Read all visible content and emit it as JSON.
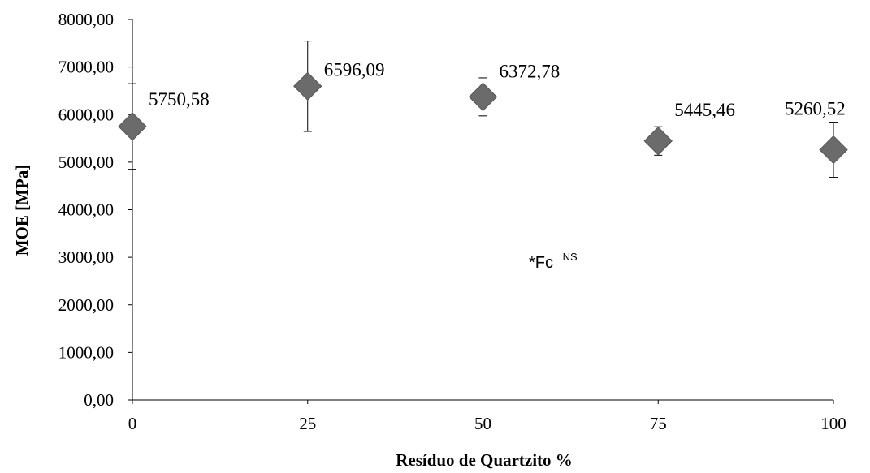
{
  "chart_data": {
    "type": "scatter",
    "x": [
      0,
      25,
      50,
      75,
      100
    ],
    "y": [
      5750.58,
      6596.09,
      6372.78,
      5445.46,
      5260.52
    ],
    "error": [
      900,
      950,
      400,
      300,
      580
    ],
    "data_labels": [
      "5750,58",
      "6596,09",
      "6372,78",
      "5445,46",
      "5260,52"
    ],
    "x_ticks": [
      "0",
      "25",
      "50",
      "75",
      "100"
    ],
    "y_ticks": [
      "0,00",
      "1000,00",
      "2000,00",
      "3000,00",
      "4000,00",
      "5000,00",
      "6000,00",
      "7000,00",
      "8000,00"
    ],
    "xlabel": "Resíduo de Quartzito %",
    "ylabel": "MOE [MPa]",
    "xlim": [
      0,
      100
    ],
    "ylim": [
      0,
      8000
    ],
    "annotation": {
      "text": "*Fc",
      "superscript": "NS"
    },
    "marker": "diamond",
    "marker_color": "#6b6b6b",
    "grid": false,
    "legend": "none"
  }
}
